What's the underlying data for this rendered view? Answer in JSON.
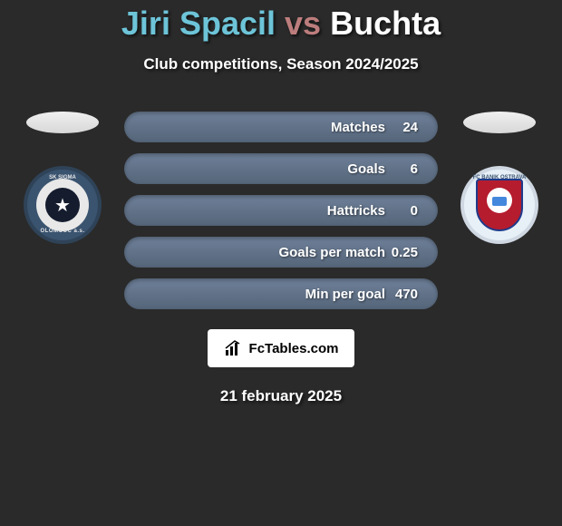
{
  "header": {
    "player1": "Jiri Spacil",
    "vs": "vs",
    "player2": "Buchta",
    "subtitle": "Club competitions, Season 2024/2025"
  },
  "colors": {
    "player1": "#6dc4d8",
    "vs": "#bd7d7d",
    "player2": "#ffffff",
    "bar_fill": "#5f7085",
    "background": "#2a2a2a",
    "text": "#ffffff"
  },
  "badges": {
    "left": {
      "name": "SK Sigma Olomouc",
      "top_text": "SK SIGMA",
      "bottom_text": "OLOMOUC a.s.",
      "bg_color": "#3a536f",
      "inner_color": "#151c2e"
    },
    "right": {
      "name": "FC Banik Ostrava",
      "top_text": "FC BANIK OSTRAVA",
      "bg_color": "#e8f0f7",
      "shield_color": "#b51c2e"
    }
  },
  "stats": [
    {
      "label": "Matches",
      "value": "24",
      "fill_pct": 100
    },
    {
      "label": "Goals",
      "value": "6",
      "fill_pct": 100
    },
    {
      "label": "Hattricks",
      "value": "0",
      "fill_pct": 100
    },
    {
      "label": "Goals per match",
      "value": "0.25",
      "fill_pct": 100
    },
    {
      "label": "Min per goal",
      "value": "470",
      "fill_pct": 100
    }
  ],
  "brand": {
    "text": "FcTables.com"
  },
  "date": "21 february 2025"
}
